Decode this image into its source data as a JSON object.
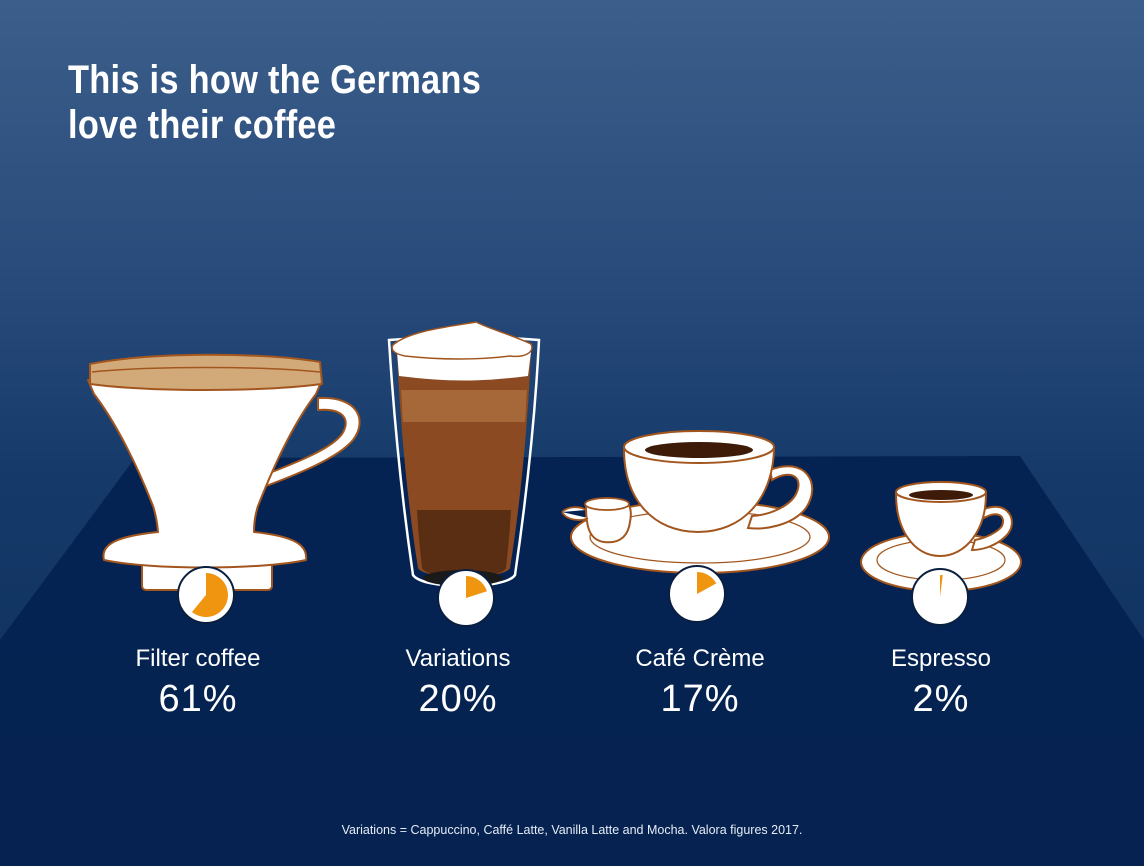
{
  "title_lines": [
    "This is how the Germans",
    "love their coffee"
  ],
  "footnote": "Variations = Cappuccino, Caffé Latte, Vanilla Latte and Mocha. Valora figures 2017.",
  "colors": {
    "pie_fill": "#f0950f",
    "pie_background": "#ffffff",
    "illustration_outline": "#a2561e",
    "coffee_dark": "#5a2e12",
    "coffee_mid": "#8b4a22",
    "coffee_light": "#a66838",
    "filter_paper": "#d2aa7a"
  },
  "chart_data": {
    "type": "pie",
    "unit": "%",
    "categories": [
      "Filter coffee",
      "Variations",
      "Café Crème",
      "Espresso"
    ],
    "values": [
      61,
      20,
      17,
      2
    ],
    "value_labels": [
      "61%",
      "20%",
      "17%",
      "2%"
    ],
    "icons": [
      "filter-coffee-dripper-icon",
      "latte-glass-icon",
      "coffee-cup-saucer-icon",
      "espresso-cup-icon"
    ]
  }
}
